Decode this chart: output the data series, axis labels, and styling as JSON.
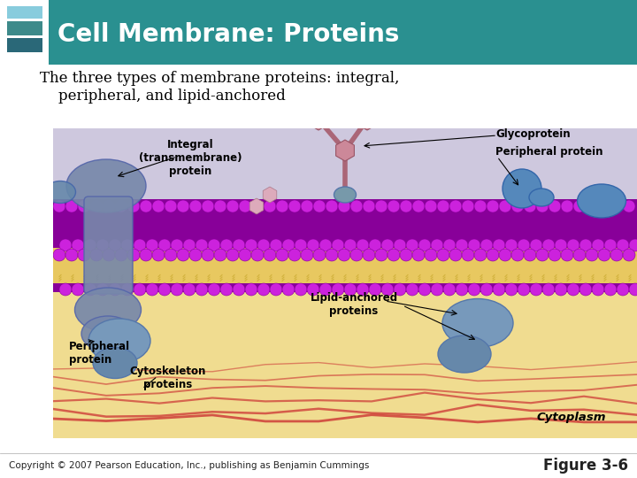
{
  "title": "Cell Membrane: Proteins",
  "subtitle_line1": "The three types of membrane proteins: integral,",
  "subtitle_line2": "    peripheral, and lipid-anchored",
  "copyright": "Copyright © 2007 Pearson Education, Inc., publishing as Benjamin Cummings",
  "figure_label": "Figure 3-6",
  "header_bg_color": "#2a9090",
  "header_left_color": "#3a6060",
  "header_text_color": "#ffffff",
  "slide_bg_color": "#ffffff",
  "subtitle_text_color": "#000000",
  "icon_colors": [
    "#88ccdd",
    "#3d8a8a",
    "#2a6878"
  ],
  "footer_text_color": "#222222",
  "title_fontsize": 20,
  "subtitle_fontsize": 12,
  "footer_fontsize": 7.5,
  "figure_label_fontsize": 12,
  "img_bg_lavender": "#d8d0e8",
  "img_bg_yellow": "#f0d888",
  "membrane_purple": "#8800aa",
  "membrane_head_color": "#9900bb",
  "lipid_tail_color": "#aa8800",
  "protein_blue": "#6688aa",
  "protein_blue_dark": "#4466aa",
  "glyco_color": "#bb7788",
  "label_color": "#000000",
  "cytoskeleton_color": "#cc3333"
}
